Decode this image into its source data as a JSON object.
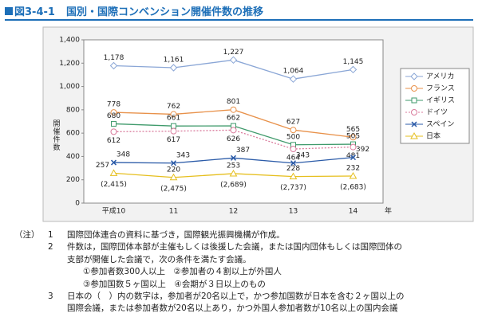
{
  "header": {
    "figure_no": "図3-4-1",
    "title": "国別・国際コンベンション開催件数の推移"
  },
  "chart_data": {
    "type": "line",
    "y_label": "開催件数",
    "x_label": "年",
    "categories": [
      "平成10",
      "11",
      "12",
      "13",
      "14"
    ],
    "ylim": [
      0,
      1400
    ],
    "yticks": [
      0,
      200,
      400,
      600,
      800,
      {
        "value": 1000,
        "label": "1,000"
      },
      {
        "value": 1200,
        "label": "1,200"
      },
      {
        "value": 1400,
        "label": "1,400"
      }
    ],
    "legend": "right",
    "series": [
      {
        "name": "アメリカ",
        "color": "#8aa6d6",
        "marker": "diamond",
        "values": [
          1178,
          1161,
          1227,
          1064,
          1145
        ],
        "value_labels": [
          "1,178",
          "1,161",
          "1,227",
          "1,064",
          "1,145"
        ]
      },
      {
        "name": "フランス",
        "color": "#e8914a",
        "marker": "circle",
        "values": [
          778,
          762,
          801,
          627,
          565
        ]
      },
      {
        "name": "イギリス",
        "color": "#3f9a6b",
        "marker": "square",
        "values": [
          680,
          661,
          662,
          500,
          505
        ]
      },
      {
        "name": "ドイツ",
        "color": "#d97b9c",
        "marker": "circle",
        "line_style": "dotted",
        "values": [
          612,
          617,
          626,
          464,
          481
        ]
      },
      {
        "name": "スペイン",
        "color": "#2b5ba8",
        "marker": "x",
        "values": [
          348,
          343,
          387,
          343,
          392
        ]
      },
      {
        "name": "日本",
        "color": "#e6bf1e",
        "marker": "triangle",
        "values": [
          257,
          220,
          253,
          228,
          232
        ],
        "participant_labels": [
          "(2,415)",
          "(2,475)",
          "(2,689)",
          "(2,737)",
          "(2,683)"
        ]
      }
    ]
  },
  "notes": {
    "label": "（注）",
    "items": [
      {
        "number": "1",
        "lines": [
          "国際団体連合の資料に基づき，国際観光振興機構が作成。"
        ]
      },
      {
        "number": "2",
        "lines": [
          "件数は，国際団体本部が主催もしくは後援した会議，または国内団体もしくは国際団体の",
          "支部が開催した会議で，次の条件を満たす会議。",
          "①参加者数300人以上　②参加者の４割以上が外国人",
          "③参加国数５ヶ国以上　④会期が３日以上のもの"
        ]
      },
      {
        "number": "3",
        "lines": [
          "日本の（　）内の数字は，参加者が20名以上で，かつ参加国数が日本を含む２ヶ国以上の",
          "国際会議，または参加者数が20名以上あり，かつ外国人参加者数が10名以上の国内会議"
        ]
      }
    ]
  }
}
